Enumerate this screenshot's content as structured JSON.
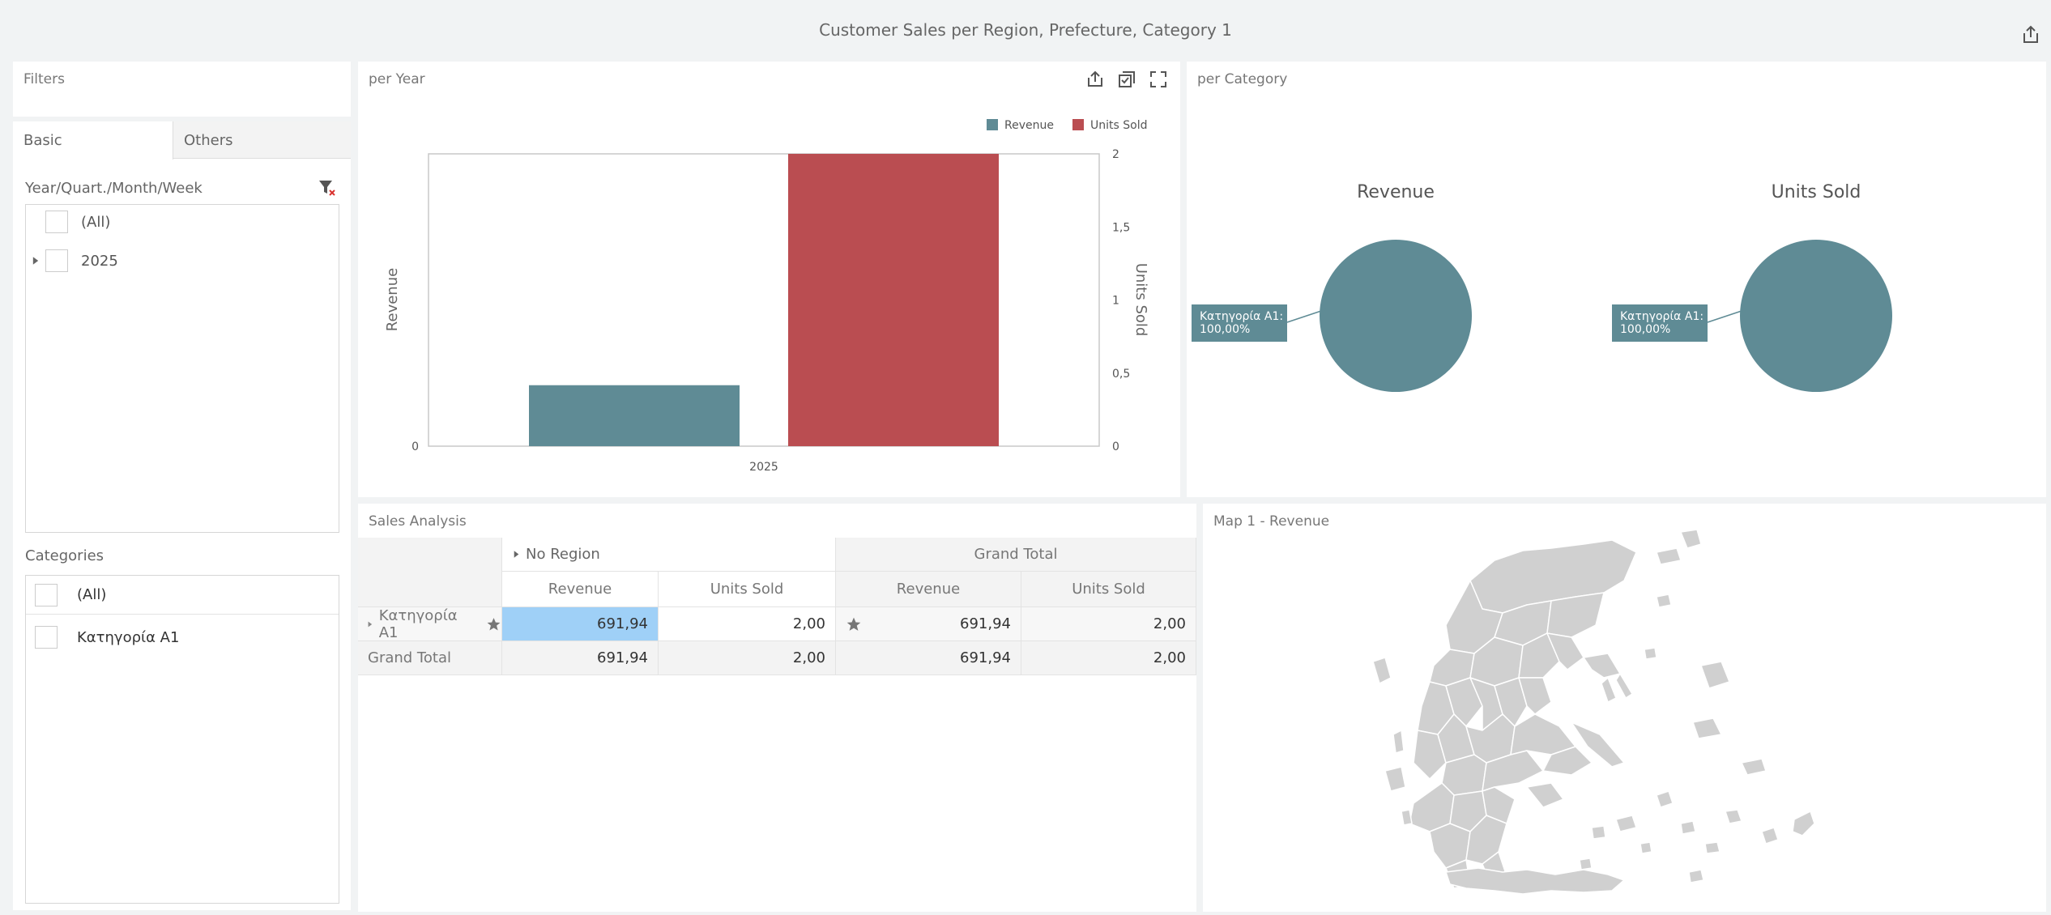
{
  "dashboard": {
    "title": "Customer Sales per Region, Prefecture, Category 1"
  },
  "filters": {
    "caption": "Filters",
    "tabs": [
      "Basic",
      "Others"
    ],
    "date_filter": {
      "label": "Year/Quart./Month/Week",
      "items": [
        "(All)",
        "2025"
      ]
    },
    "categories": {
      "label": "Categories",
      "items": [
        "(All)",
        "Κατηγορία A1"
      ]
    }
  },
  "per_year": {
    "caption": "per Year",
    "chart_data": {
      "type": "bar",
      "categories": [
        "2025"
      ],
      "series": [
        {
          "name": "Revenue",
          "values": [
            691.94
          ],
          "axis": "left",
          "color": "#5f8b95"
        },
        {
          "name": "Units Sold",
          "values": [
            2
          ],
          "axis": "right",
          "color": "#ba4d51"
        }
      ],
      "ylabel": "Revenue",
      "y2label": "Units Sold",
      "y_ticks": [
        "0"
      ],
      "y2_ticks": [
        "0",
        "0,5",
        "1",
        "1,5",
        "2"
      ],
      "y2lim": [
        0,
        2
      ],
      "legend": [
        "Revenue",
        "Units Sold"
      ]
    }
  },
  "per_category": {
    "caption": "per Category",
    "chart_data": {
      "type": "pie",
      "pies": [
        {
          "title": "Revenue",
          "slices": [
            {
              "label": "Κατηγορία A1",
              "value": 100,
              "display": "Κατηγορία A1:",
              "percent": "100,00%"
            }
          ],
          "color": "#5f8b95"
        },
        {
          "title": "Units Sold",
          "slices": [
            {
              "label": "Κατηγορία A1",
              "value": 100,
              "display": "Κατηγορία A1:",
              "percent": "100,00%"
            }
          ],
          "color": "#5f8b95"
        }
      ]
    }
  },
  "sales_analysis": {
    "caption": "Sales Analysis",
    "col_groups": [
      "No Region",
      "Grand Total"
    ],
    "measures": [
      "Revenue",
      "Units Sold",
      "Revenue",
      "Units Sold"
    ],
    "rows": [
      {
        "label": "Κατηγορία A1",
        "values": [
          "691,94",
          "2,00",
          "691,94",
          "2,00"
        ]
      },
      {
        "label": "Grand Total",
        "values": [
          "691,94",
          "2,00",
          "691,94",
          "2,00"
        ]
      }
    ]
  },
  "map": {
    "caption": "Map 1 - Revenue"
  }
}
